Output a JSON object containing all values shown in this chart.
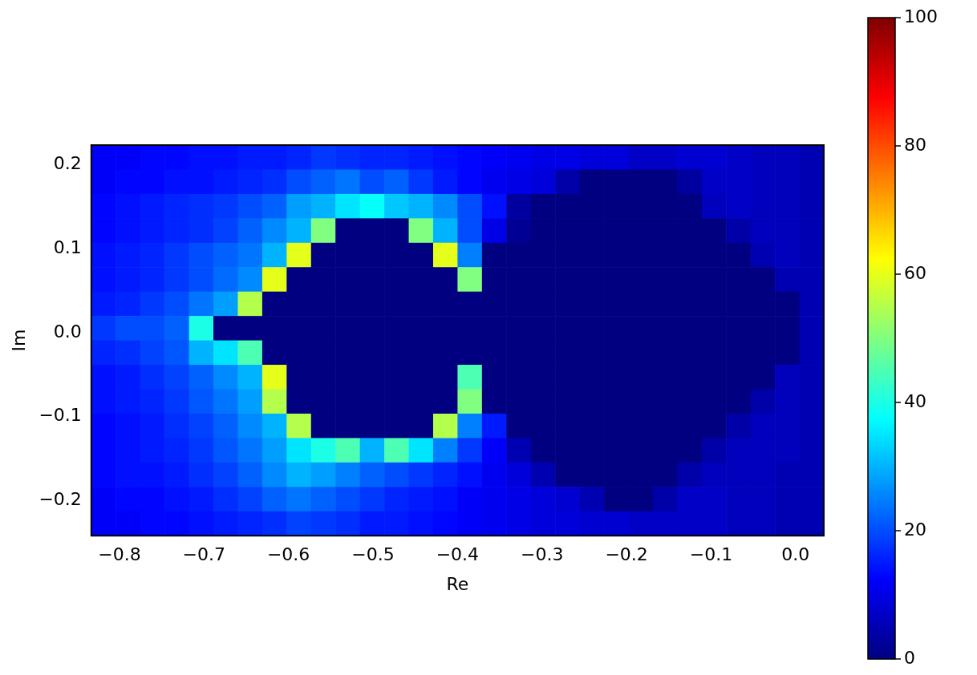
{
  "chart_data": {
    "type": "heatmap",
    "xlabel": "Re",
    "ylabel": "Im",
    "xlim": [
      -0.8333,
      0.0334
    ],
    "ylim": [
      -0.2417,
      0.2232
    ],
    "xticks": [
      {
        "value": -0.8,
        "label": "−0.8"
      },
      {
        "value": -0.7,
        "label": "−0.7"
      },
      {
        "value": -0.6,
        "label": "−0.6"
      },
      {
        "value": -0.5,
        "label": "−0.5"
      },
      {
        "value": -0.4,
        "label": "−0.4"
      },
      {
        "value": -0.3,
        "label": "−0.3"
      },
      {
        "value": -0.2,
        "label": "−0.2"
      },
      {
        "value": -0.1,
        "label": "−0.1"
      },
      {
        "value": 0,
        "label": "0.0"
      }
    ],
    "yticks": [
      {
        "value": -0.2,
        "label": "−0.2"
      },
      {
        "value": -0.1,
        "label": "−0.1"
      },
      {
        "value": 0,
        "label": "0.0"
      },
      {
        "value": 0.1,
        "label": "0.1"
      },
      {
        "value": 0.2,
        "label": "0.2"
      }
    ],
    "clim": [
      0,
      100
    ],
    "cticks": [
      0,
      20,
      40,
      60,
      80,
      100
    ],
    "cells": [
      [
        12,
        12,
        13,
        13,
        14,
        14,
        15,
        15,
        16,
        18,
        17,
        16,
        16,
        15,
        14,
        13,
        12,
        11,
        10,
        10,
        9,
        9,
        7,
        7,
        8,
        8,
        7,
        6,
        6,
        5
      ],
      [
        12,
        13,
        13,
        14,
        14,
        15,
        16,
        17,
        20,
        22,
        24,
        20,
        22,
        18,
        15,
        13,
        11,
        10,
        9,
        4,
        0,
        0,
        0,
        0,
        3,
        7,
        7,
        6,
        6,
        5
      ],
      [
        13,
        14,
        15,
        16,
        17,
        18,
        20,
        22,
        28,
        30,
        35,
        38,
        32,
        30,
        26,
        20,
        14,
        3,
        0,
        0,
        0,
        0,
        0,
        0,
        0,
        6,
        7,
        6,
        6,
        5
      ],
      [
        13,
        14,
        15,
        16,
        17,
        19,
        22,
        26,
        30,
        50,
        0,
        0,
        0,
        50,
        30,
        20,
        10,
        2,
        0,
        0,
        0,
        0,
        0,
        0,
        0,
        0,
        4,
        6,
        6,
        5
      ],
      [
        14,
        15,
        16,
        18,
        20,
        22,
        24,
        30,
        60,
        0,
        0,
        0,
        0,
        0,
        60,
        25,
        0,
        0,
        0,
        0,
        0,
        0,
        0,
        0,
        0,
        0,
        0,
        5,
        6,
        5
      ],
      [
        14,
        15,
        16,
        18,
        20,
        23,
        26,
        60,
        0,
        0,
        0,
        0,
        0,
        0,
        0,
        50,
        0,
        0,
        0,
        0,
        0,
        0,
        0,
        0,
        0,
        0,
        0,
        0,
        5,
        5
      ],
      [
        15,
        16,
        18,
        20,
        24,
        28,
        55,
        0,
        0,
        0,
        0,
        0,
        0,
        0,
        0,
        0,
        0,
        0,
        0,
        0,
        0,
        0,
        0,
        0,
        0,
        0,
        0,
        0,
        0,
        5
      ],
      [
        18,
        20,
        20,
        22,
        40,
        0,
        0,
        0,
        0,
        0,
        0,
        0,
        0,
        0,
        0,
        0,
        0,
        0,
        0,
        0,
        0,
        0,
        0,
        0,
        0,
        0,
        0,
        0,
        0,
        5
      ],
      [
        16,
        17,
        19,
        21,
        30,
        35,
        45,
        0,
        0,
        0,
        0,
        0,
        0,
        0,
        0,
        0,
        0,
        0,
        0,
        0,
        0,
        0,
        0,
        0,
        0,
        0,
        0,
        0,
        0,
        5
      ],
      [
        14,
        15,
        17,
        19,
        22,
        26,
        30,
        60,
        0,
        0,
        0,
        0,
        0,
        0,
        0,
        45,
        0,
        0,
        0,
        0,
        0,
        0,
        0,
        0,
        0,
        0,
        0,
        0,
        6,
        5
      ],
      [
        14,
        15,
        16,
        18,
        21,
        24,
        28,
        55,
        0,
        0,
        0,
        0,
        0,
        0,
        0,
        50,
        0,
        0,
        0,
        0,
        0,
        0,
        0,
        0,
        0,
        0,
        0,
        4,
        6,
        5
      ],
      [
        13,
        14,
        15,
        17,
        19,
        22,
        26,
        30,
        55,
        0,
        0,
        0,
        0,
        0,
        55,
        25,
        15,
        0,
        0,
        0,
        0,
        0,
        0,
        0,
        0,
        0,
        4,
        6,
        6,
        5
      ],
      [
        13,
        14,
        15,
        16,
        18,
        21,
        24,
        28,
        35,
        40,
        45,
        30,
        45,
        35,
        25,
        18,
        12,
        5,
        0,
        0,
        0,
        0,
        0,
        0,
        0,
        4,
        6,
        6,
        6,
        5
      ],
      [
        13,
        14,
        14,
        15,
        17,
        19,
        22,
        26,
        30,
        28,
        25,
        22,
        20,
        18,
        16,
        14,
        11,
        9,
        5,
        0,
        0,
        0,
        0,
        0,
        4,
        6,
        6,
        6,
        5,
        5
      ],
      [
        12,
        13,
        13,
        14,
        15,
        17,
        19,
        22,
        24,
        22,
        20,
        18,
        16,
        15,
        14,
        12,
        11,
        10,
        9,
        8,
        5,
        0,
        0,
        4,
        7,
        7,
        6,
        6,
        5,
        5
      ],
      [
        12,
        12,
        13,
        13,
        14,
        15,
        16,
        17,
        19,
        18,
        17,
        15,
        15,
        14,
        13,
        12,
        11,
        10,
        9,
        9,
        8,
        8,
        7,
        7,
        7,
        7,
        6,
        6,
        5,
        5
      ]
    ]
  }
}
